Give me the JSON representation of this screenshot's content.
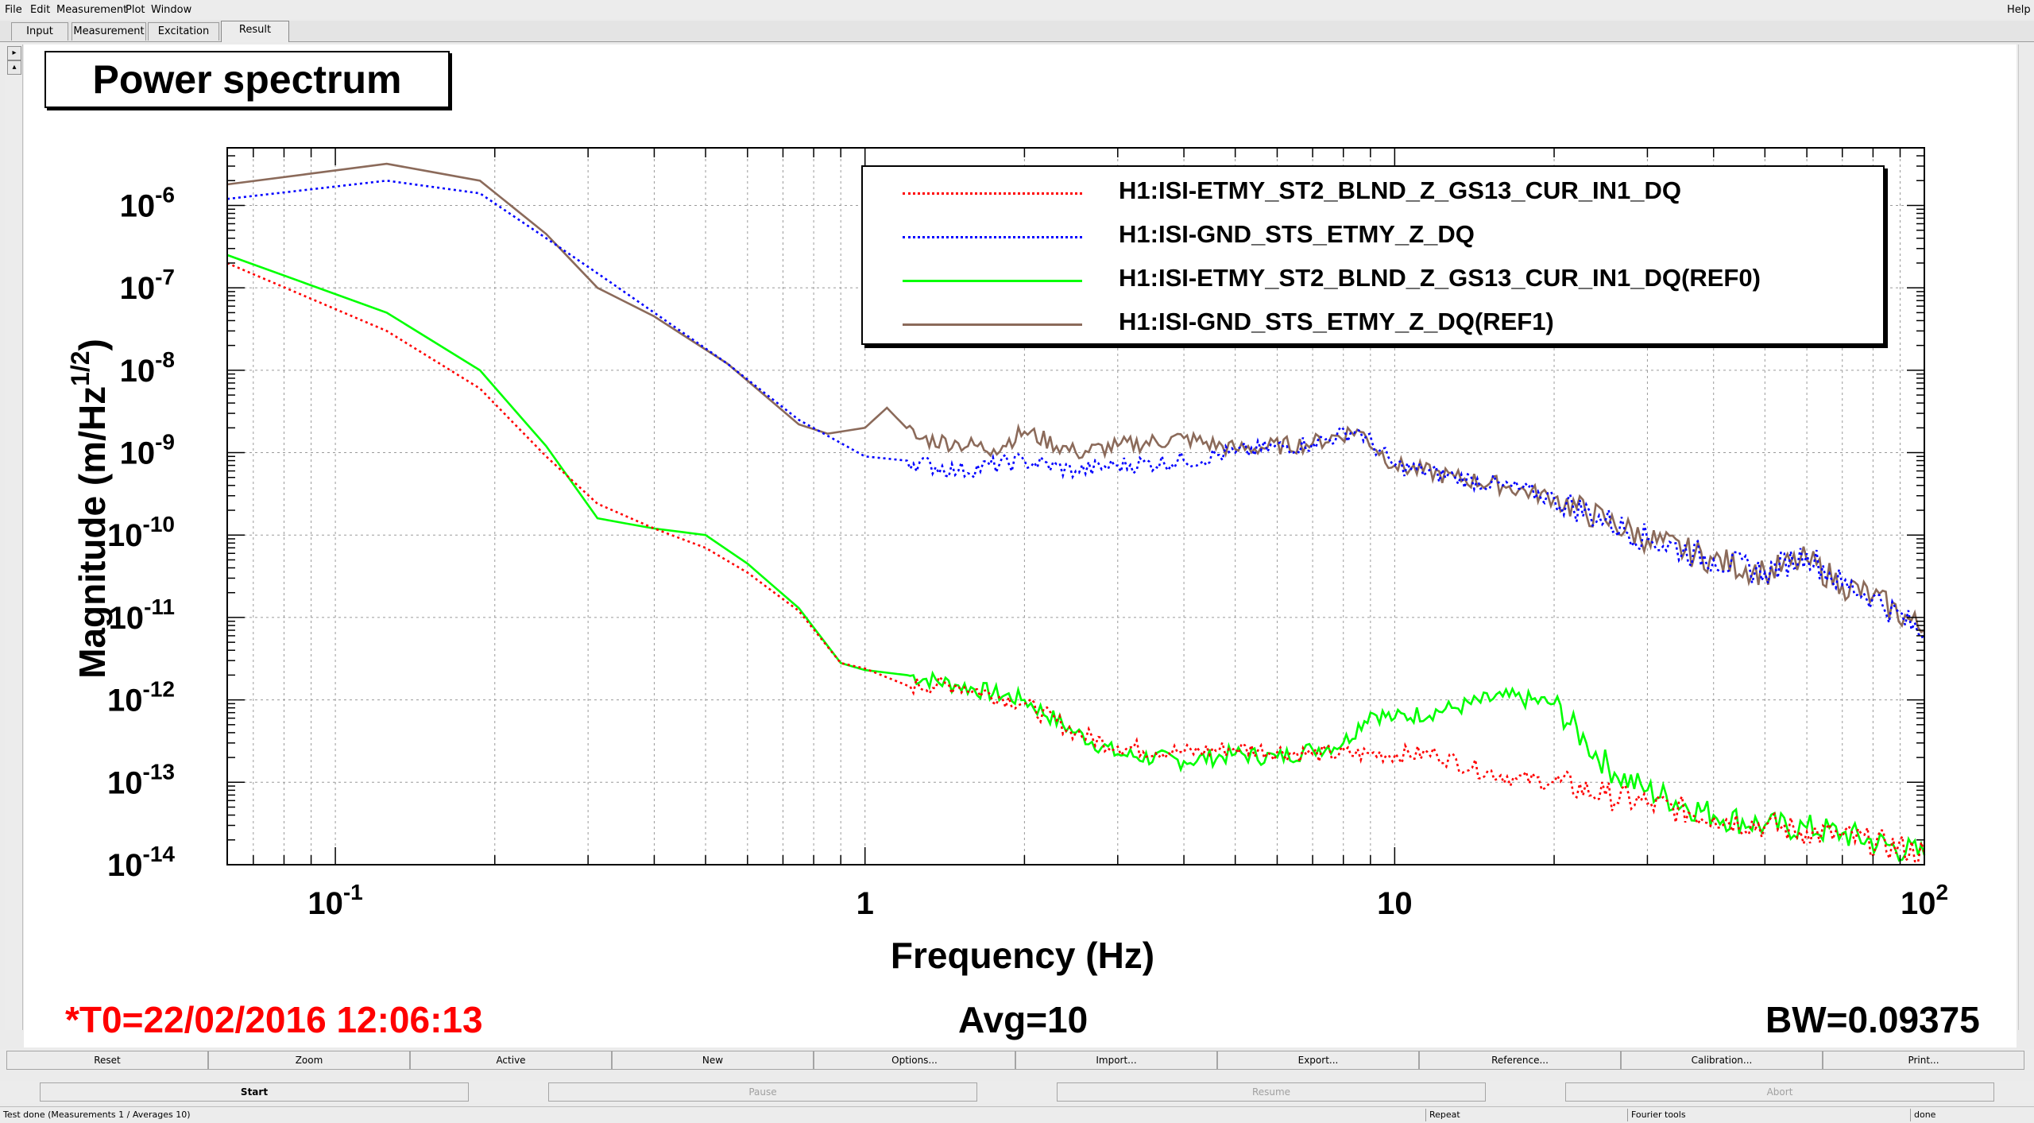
{
  "menu": {
    "items": [
      "File",
      "Edit",
      "Measurement",
      "Plot",
      "Window"
    ],
    "help": "Help"
  },
  "tabs": [
    "Input",
    "Measurement",
    "Excitation",
    "Result"
  ],
  "active_tab": "Result",
  "plot_title": "Power spectrum",
  "footer": {
    "t0": "*T0=22/02/2016 12:06:13",
    "avg": "Avg=10",
    "bw": "BW=0.09375"
  },
  "colors": {
    "t0": "#ff0000",
    "series_red": "#ff0000",
    "series_blue": "#0000ff",
    "series_green": "#00ff00",
    "series_brown": "#8b6a5a"
  },
  "button_row1": [
    "Reset",
    "Zoom",
    "Active",
    "New",
    "Options...",
    "Import...",
    "Export...",
    "Reference...",
    "Calibration...",
    "Print..."
  ],
  "button_row2": [
    "Start",
    "Pause",
    "Resume",
    "Abort"
  ],
  "status": {
    "left": "Test done (Measurements 1 / Averages 10)",
    "repeat": "Repeat",
    "fourier": "Fourier tools",
    "done": "done"
  },
  "chart_data": {
    "type": "line",
    "title": "Power spectrum",
    "xlabel": "Frequency (Hz)",
    "ylabel": "Magnitude (m/Hz^1/2)",
    "x_scale": "log",
    "y_scale": "log",
    "xlim": [
      0.0625,
      100
    ],
    "ylim": [
      1e-14,
      5e-06
    ],
    "grid": true,
    "legend_position": "top-right",
    "x_ticks": [
      {
        "value": 0.1,
        "base": "10",
        "exp": "-1"
      },
      {
        "value": 1,
        "base": "1",
        "exp": ""
      },
      {
        "value": 10,
        "base": "10",
        "exp": ""
      },
      {
        "value": 100,
        "base": "10",
        "exp": "2"
      }
    ],
    "y_ticks": [
      {
        "value": 1e-06,
        "base": "10",
        "exp": "-6"
      },
      {
        "value": 1e-07,
        "base": "10",
        "exp": "-7"
      },
      {
        "value": 1e-08,
        "base": "10",
        "exp": "-8"
      },
      {
        "value": 1e-09,
        "base": "10",
        "exp": "-9"
      },
      {
        "value": 1e-10,
        "base": "10",
        "exp": "-10"
      },
      {
        "value": 1e-11,
        "base": "10",
        "exp": "-11"
      },
      {
        "value": 1e-12,
        "base": "10",
        "exp": "-12"
      },
      {
        "value": 1e-13,
        "base": "10",
        "exp": "-13"
      },
      {
        "value": 1e-14,
        "base": "10",
        "exp": "-14"
      }
    ],
    "series": [
      {
        "name": "H1:ISI-ETMY_ST2_BLND_Z_GS13_CUR_IN1_DQ",
        "color": "#ff0000",
        "style": "dotted",
        "points": [
          [
            0.0625,
            2e-07
          ],
          [
            0.125,
            3e-08
          ],
          [
            0.1875,
            6e-09
          ],
          [
            0.25,
            9e-10
          ],
          [
            0.3125,
            2.4e-10
          ],
          [
            0.4,
            1.2e-10
          ],
          [
            0.5,
            7e-11
          ],
          [
            0.6,
            3.5e-11
          ],
          [
            0.75,
            1.2e-11
          ],
          [
            0.9,
            2.8e-12
          ],
          [
            1.0,
            2.4e-12
          ],
          [
            1.2,
            1.5e-12
          ],
          [
            1.5,
            1.5e-12
          ],
          [
            2.0,
            9e-13
          ],
          [
            2.5,
            4e-13
          ],
          [
            3.0,
            2.7e-13
          ],
          [
            4.0,
            2.3e-13
          ],
          [
            5.0,
            2.6e-13
          ],
          [
            7.0,
            2.2e-13
          ],
          [
            9.0,
            2.2e-13
          ],
          [
            12.0,
            2.2e-13
          ],
          [
            14.0,
            1.5e-13
          ],
          [
            17.0,
            1.1e-13
          ],
          [
            20.0,
            1e-13
          ],
          [
            25.0,
            7e-14
          ],
          [
            30.0,
            5.5e-14
          ],
          [
            40.0,
            3.8e-14
          ],
          [
            50.0,
            3e-14
          ],
          [
            60.0,
            2.5e-14
          ],
          [
            70.0,
            2.2e-14
          ],
          [
            100.0,
            1.4e-14
          ]
        ]
      },
      {
        "name": "H1:ISI-GND_STS_ETMY_Z_DQ",
        "color": "#0000ff",
        "style": "dotted",
        "points": [
          [
            0.0625,
            1.2e-06
          ],
          [
            0.125,
            2e-06
          ],
          [
            0.1875,
            1.4e-06
          ],
          [
            0.25,
            4e-07
          ],
          [
            0.3125,
            1.5e-07
          ],
          [
            0.4,
            5e-08
          ],
          [
            0.55,
            1.2e-08
          ],
          [
            0.75,
            2.5e-09
          ],
          [
            1.0,
            9e-10
          ],
          [
            1.2,
            8e-10
          ],
          [
            1.5,
            6e-10
          ],
          [
            2.0,
            8e-10
          ],
          [
            2.5,
            6e-10
          ],
          [
            3.0,
            7e-10
          ],
          [
            4.0,
            8e-10
          ],
          [
            5.0,
            1e-09
          ],
          [
            7.0,
            1.3e-09
          ],
          [
            8.5,
            1.9e-09
          ],
          [
            10.0,
            7e-10
          ],
          [
            13.0,
            5e-10
          ],
          [
            16.0,
            4e-10
          ],
          [
            20.0,
            2.8e-10
          ],
          [
            25.0,
            1.5e-10
          ],
          [
            30.0,
            9e-11
          ],
          [
            40.0,
            5e-11
          ],
          [
            50.0,
            3.5e-11
          ],
          [
            60.0,
            6e-11
          ],
          [
            70.0,
            2.5e-11
          ],
          [
            80.0,
            1.8e-11
          ],
          [
            100.0,
            6e-12
          ]
        ]
      },
      {
        "name": "H1:ISI-ETMY_ST2_BLND_Z_GS13_CUR_IN1_DQ(REF0)",
        "color": "#00ff00",
        "style": "solid",
        "points": [
          [
            0.0625,
            2.5e-07
          ],
          [
            0.125,
            5e-08
          ],
          [
            0.1875,
            1e-08
          ],
          [
            0.25,
            1.2e-09
          ],
          [
            0.3125,
            1.6e-10
          ],
          [
            0.4,
            1.2e-10
          ],
          [
            0.5,
            1e-10
          ],
          [
            0.6,
            4.5e-11
          ],
          [
            0.75,
            1.3e-11
          ],
          [
            0.9,
            2.8e-12
          ],
          [
            1.0,
            2.3e-12
          ],
          [
            1.2,
            2e-12
          ],
          [
            1.5,
            1.5e-12
          ],
          [
            2.0,
            1e-12
          ],
          [
            2.5,
            4e-13
          ],
          [
            3.0,
            2.2e-13
          ],
          [
            4.0,
            1.8e-13
          ],
          [
            5.0,
            2.2e-13
          ],
          [
            6.0,
            2e-13
          ],
          [
            7.0,
            2.5e-13
          ],
          [
            8.0,
            3e-13
          ],
          [
            9.0,
            7e-13
          ],
          [
            10.0,
            6e-13
          ],
          [
            13.0,
            8e-13
          ],
          [
            16.0,
            1.1e-12
          ],
          [
            20.0,
            9e-13
          ],
          [
            23.0,
            3e-13
          ],
          [
            26.0,
            1.3e-13
          ],
          [
            30.0,
            8e-14
          ],
          [
            40.0,
            4e-14
          ],
          [
            50.0,
            3e-14
          ],
          [
            60.0,
            2.8e-14
          ],
          [
            70.0,
            2.4e-14
          ],
          [
            100.0,
            1.3e-14
          ]
        ]
      },
      {
        "name": "H1:ISI-GND_STS_ETMY_Z_DQ(REF1)",
        "color": "#8b6a5a",
        "style": "solid",
        "points": [
          [
            0.0625,
            1.8e-06
          ],
          [
            0.125,
            3.2e-06
          ],
          [
            0.1875,
            2e-06
          ],
          [
            0.25,
            4.5e-07
          ],
          [
            0.3125,
            1e-07
          ],
          [
            0.4,
            4.5e-08
          ],
          [
            0.55,
            1.2e-08
          ],
          [
            0.75,
            2.2e-09
          ],
          [
            0.85,
            1.7e-09
          ],
          [
            1.0,
            2e-09
          ],
          [
            1.1,
            3.5e-09
          ],
          [
            1.25,
            1.5e-09
          ],
          [
            1.5,
            1.3e-09
          ],
          [
            1.75,
            1.1e-09
          ],
          [
            2.0,
            1.8e-09
          ],
          [
            2.5,
            1e-09
          ],
          [
            3.0,
            1.2e-09
          ],
          [
            4.0,
            1.5e-09
          ],
          [
            5.0,
            1.1e-09
          ],
          [
            7.0,
            1.3e-09
          ],
          [
            8.5,
            1.9e-09
          ],
          [
            10.0,
            7e-10
          ],
          [
            13.0,
            5e-10
          ],
          [
            16.0,
            4e-10
          ],
          [
            20.0,
            2.8e-10
          ],
          [
            25.0,
            1.5e-10
          ],
          [
            30.0,
            9e-11
          ],
          [
            40.0,
            5e-11
          ],
          [
            50.0,
            3.5e-11
          ],
          [
            60.0,
            5e-11
          ],
          [
            70.0,
            2.5e-11
          ],
          [
            80.0,
            1.8e-11
          ],
          [
            100.0,
            7e-12
          ]
        ]
      }
    ]
  }
}
